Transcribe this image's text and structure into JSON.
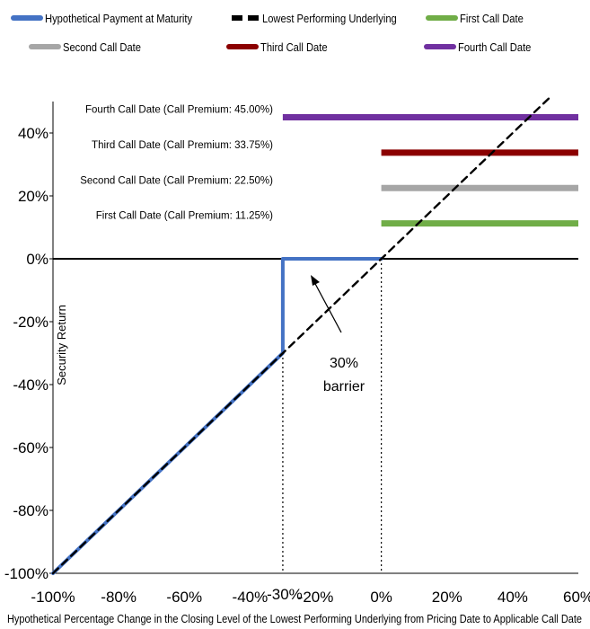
{
  "chart_data": {
    "type": "line",
    "xlabel": "Hypothetical Percentage Change in the Closing Level of the Lowest Performing Underlying from Pricing Date to Applicable Call Date",
    "ylabel": "Security Return",
    "xlim": [
      -100,
      60
    ],
    "ylim": [
      -100,
      50
    ],
    "x_ticks": [
      "-100%",
      "-80%",
      "-60%",
      "-40%",
      "-30%",
      "-20%",
      "0%",
      "20%",
      "40%",
      "60%"
    ],
    "x_tick_values": [
      -100,
      -80,
      -60,
      -40,
      -30,
      -20,
      0,
      20,
      40,
      60
    ],
    "y_ticks": [
      "-100%",
      "-80%",
      "-60%",
      "-40%",
      "-20%",
      "0%",
      "20%",
      "40%"
    ],
    "y_tick_values": [
      -100,
      -80,
      -60,
      -40,
      -20,
      0,
      20,
      40
    ],
    "legend_position": "top",
    "series": [
      {
        "name": "Hypothetical Payment at Maturity",
        "color": "#4472C4",
        "style": "solid",
        "points": [
          [
            -100,
            -100
          ],
          [
            -30,
            -30
          ],
          [
            -30,
            0
          ],
          [
            0,
            0
          ]
        ]
      },
      {
        "name": "Lowest Performing Underlying",
        "color": "#000000",
        "style": "dashed",
        "points": [
          [
            -100,
            -100
          ],
          [
            52,
            52
          ]
        ]
      },
      {
        "name": "First Call Date",
        "color": "#70AD47",
        "style": "solid",
        "points": [
          [
            0,
            11.25
          ],
          [
            60,
            11.25
          ]
        ]
      },
      {
        "name": "Second Call Date",
        "color": "#A6A6A6",
        "style": "solid",
        "points": [
          [
            0,
            22.5
          ],
          [
            60,
            22.5
          ]
        ]
      },
      {
        "name": "Third Call Date",
        "color": "#8B0000",
        "style": "solid",
        "points": [
          [
            0,
            33.75
          ],
          [
            60,
            33.75
          ]
        ]
      },
      {
        "name": "Fourth Call Date",
        "color": "#7030A0",
        "style": "solid",
        "points": [
          [
            -30,
            45
          ],
          [
            60,
            45
          ]
        ]
      }
    ],
    "annotations": [
      {
        "text": "Fourth Call Date (Call Premium: 45.00%)",
        "x": -30,
        "y": 45
      },
      {
        "text": "Third Call Date (Call Premium: 33.75%)",
        "x": 0,
        "y": 33.75
      },
      {
        "text": "Second Call Date (Call Premium: 22.50%)",
        "x": 0,
        "y": 22.5
      },
      {
        "text": "First Call Date (Call Premium: 11.25%)",
        "x": 0,
        "y": 11.25
      }
    ],
    "barrier_label": [
      "30%",
      "barrier"
    ],
    "reference_lines": [
      -30,
      0
    ]
  }
}
